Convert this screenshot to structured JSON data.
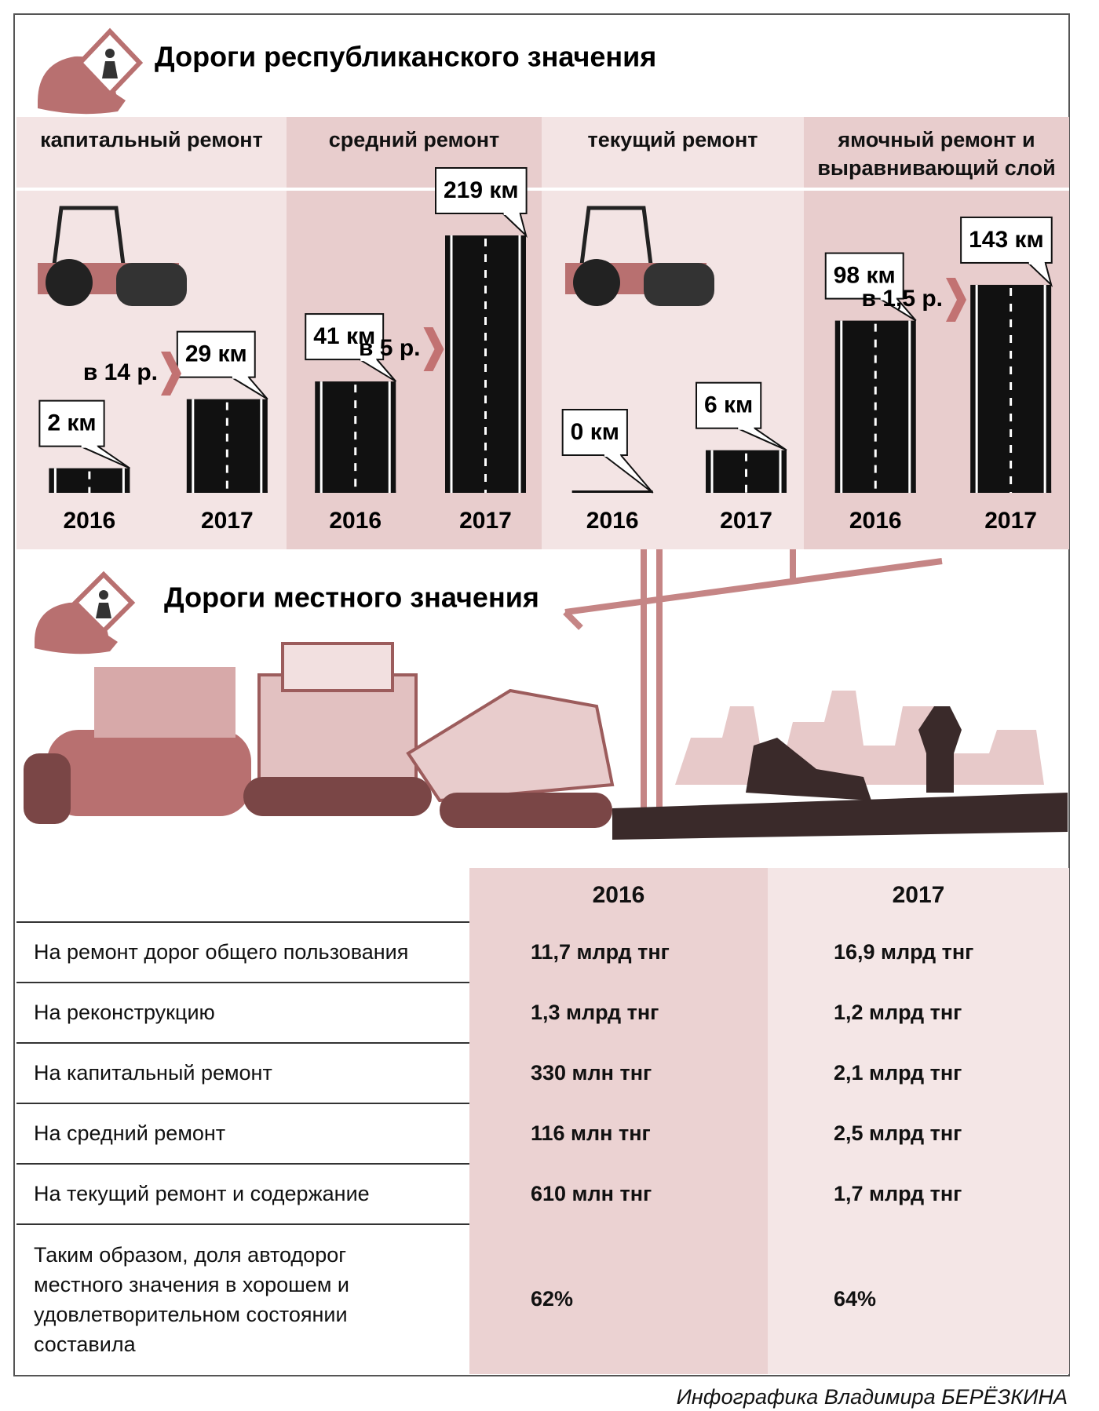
{
  "chart_data": {
    "type": "bar",
    "title": "Дороги республиканского значения",
    "categories": [
      "капитальный ремонт",
      "средний ремонт",
      "текущий ремонт",
      "ямочный ремонт и выравнивающий слой"
    ],
    "series": [
      {
        "name": "2016",
        "color": "#111111",
        "values": [
          2,
          41,
          0,
          98
        ],
        "value_labels": [
          "2 км",
          "41 км",
          "0 км",
          "98 км"
        ]
      },
      {
        "name": "2017",
        "color": "#111111",
        "values": [
          29,
          219,
          6,
          143
        ],
        "value_labels": [
          "29 км",
          "219 км",
          "6 км",
          "143 км"
        ]
      }
    ],
    "annotations": [
      "в 14 р.",
      "в 5 р.",
      "в 1,5 р."
    ]
  },
  "local": {
    "title": "Дороги местного значения"
  },
  "table": {
    "columns": [
      "2016",
      "2017"
    ],
    "rows": [
      {
        "label": "На ремонт дорог общего пользования",
        "cells": [
          "11,7 млрд тнг",
          "16,9 млрд тнг"
        ]
      },
      {
        "label": "На реконструкцию",
        "cells": [
          "1,3 млрд тнг",
          "1,2 млрд тнг"
        ]
      },
      {
        "label": "На капитальный ремонт",
        "cells": [
          "330 млн тнг",
          "2,1 млрд тнг"
        ]
      },
      {
        "label": "На средний ремонт",
        "cells": [
          "116 млн тнг",
          "2,5 млрд тнг"
        ]
      },
      {
        "label": "На текущий ремонт и содержание",
        "cells": [
          "610 млн тнг",
          "1,7 млрд тнг"
        ]
      },
      {
        "label": "Таким образом, доля автодорог местного значения в хорошем и удовлетворительном состоянии составила",
        "cells": [
          "62%",
          "64%"
        ]
      }
    ]
  },
  "footer": {
    "credit": "Инфографика Владимира БЕРЁЗКИНА"
  }
}
